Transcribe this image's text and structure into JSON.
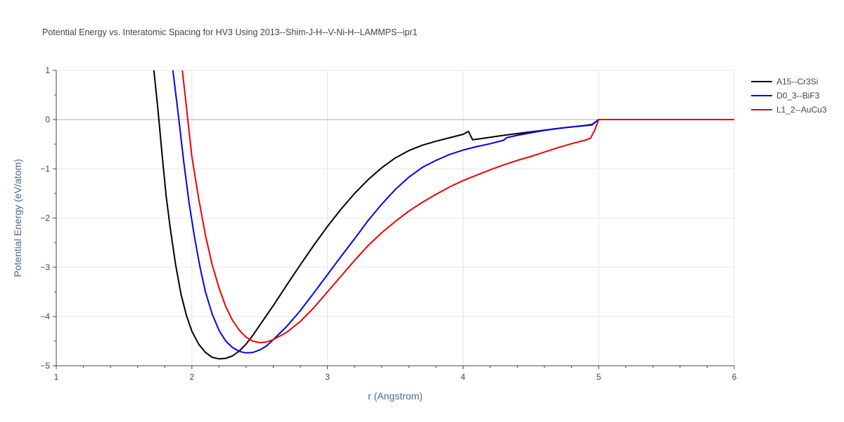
{
  "chart_data": {
    "type": "line",
    "title": "Potential Energy vs. Interatomic Spacing for HV3 Using 2013--Shim-J-H--V-Ni-H--LAMMPS--ipr1",
    "xlabel": "r (Angstrom)",
    "ylabel": "Potential Energy (eV/atom)",
    "xlim": [
      1,
      6
    ],
    "ylim": [
      -5,
      1
    ],
    "xticks": [
      1,
      2,
      3,
      4,
      5,
      6
    ],
    "xtick_labels": [
      "1",
      "2",
      "3",
      "4",
      "5",
      "6"
    ],
    "yticks": [
      1,
      0,
      -1,
      -2,
      -3,
      -4,
      -5
    ],
    "ytick_labels": [
      "1",
      "0",
      "−1",
      "−2",
      "−3",
      "−4",
      "−5"
    ],
    "grid": true,
    "legend_position": "top-right",
    "series": [
      {
        "name": "A15--Cr3Si",
        "color": "#000000",
        "points": [
          [
            1.72,
            1.0
          ],
          [
            1.75,
            0.2
          ],
          [
            1.78,
            -0.7
          ],
          [
            1.81,
            -1.55
          ],
          [
            1.84,
            -2.2
          ],
          [
            1.88,
            -2.95
          ],
          [
            1.92,
            -3.55
          ],
          [
            1.96,
            -3.98
          ],
          [
            2.0,
            -4.3
          ],
          [
            2.05,
            -4.56
          ],
          [
            2.1,
            -4.73
          ],
          [
            2.15,
            -4.83
          ],
          [
            2.2,
            -4.86
          ],
          [
            2.25,
            -4.85
          ],
          [
            2.3,
            -4.8
          ],
          [
            2.35,
            -4.7
          ],
          [
            2.4,
            -4.56
          ],
          [
            2.45,
            -4.38
          ],
          [
            2.5,
            -4.18
          ],
          [
            2.6,
            -3.78
          ],
          [
            2.7,
            -3.36
          ],
          [
            2.8,
            -2.95
          ],
          [
            2.9,
            -2.55
          ],
          [
            3.0,
            -2.17
          ],
          [
            3.1,
            -1.82
          ],
          [
            3.2,
            -1.5
          ],
          [
            3.3,
            -1.22
          ],
          [
            3.4,
            -0.98
          ],
          [
            3.5,
            -0.78
          ],
          [
            3.6,
            -0.63
          ],
          [
            3.7,
            -0.52
          ],
          [
            3.8,
            -0.44
          ],
          [
            3.9,
            -0.37
          ],
          [
            4.0,
            -0.3
          ],
          [
            4.04,
            -0.24
          ],
          [
            4.07,
            -0.41
          ],
          [
            4.1,
            -0.4
          ],
          [
            4.3,
            -0.32
          ],
          [
            4.5,
            -0.25
          ],
          [
            4.7,
            -0.18
          ],
          [
            4.9,
            -0.12
          ],
          [
            4.95,
            -0.1
          ],
          [
            5.0,
            0.0
          ],
          [
            6.0,
            0.0
          ]
        ]
      },
      {
        "name": "D0_3--BiF3",
        "color": "#0000ee",
        "points": [
          [
            1.86,
            1.0
          ],
          [
            1.9,
            0.1
          ],
          [
            1.94,
            -0.85
          ],
          [
            1.98,
            -1.7
          ],
          [
            2.02,
            -2.4
          ],
          [
            2.06,
            -3.0
          ],
          [
            2.1,
            -3.5
          ],
          [
            2.15,
            -3.95
          ],
          [
            2.2,
            -4.28
          ],
          [
            2.25,
            -4.5
          ],
          [
            2.3,
            -4.63
          ],
          [
            2.35,
            -4.71
          ],
          [
            2.4,
            -4.74
          ],
          [
            2.45,
            -4.73
          ],
          [
            2.5,
            -4.68
          ],
          [
            2.55,
            -4.6
          ],
          [
            2.6,
            -4.47
          ],
          [
            2.7,
            -4.2
          ],
          [
            2.8,
            -3.88
          ],
          [
            2.9,
            -3.52
          ],
          [
            3.0,
            -3.15
          ],
          [
            3.1,
            -2.78
          ],
          [
            3.2,
            -2.42
          ],
          [
            3.3,
            -2.05
          ],
          [
            3.4,
            -1.72
          ],
          [
            3.5,
            -1.42
          ],
          [
            3.6,
            -1.17
          ],
          [
            3.7,
            -0.97
          ],
          [
            3.8,
            -0.83
          ],
          [
            3.9,
            -0.71
          ],
          [
            4.0,
            -0.62
          ],
          [
            4.1,
            -0.55
          ],
          [
            4.2,
            -0.49
          ],
          [
            4.3,
            -0.42
          ],
          [
            4.32,
            -0.37
          ],
          [
            4.4,
            -0.32
          ],
          [
            4.5,
            -0.27
          ],
          [
            4.6,
            -0.22
          ],
          [
            4.7,
            -0.18
          ],
          [
            4.8,
            -0.15
          ],
          [
            4.95,
            -0.11
          ],
          [
            5.0,
            0.0
          ],
          [
            6.0,
            0.0
          ]
        ]
      },
      {
        "name": "L1_2--AuCu3",
        "color": "#ee0000",
        "points": [
          [
            1.93,
            1.0
          ],
          [
            1.97,
            0.0
          ],
          [
            2.0,
            -0.75
          ],
          [
            2.05,
            -1.6
          ],
          [
            2.1,
            -2.35
          ],
          [
            2.15,
            -2.95
          ],
          [
            2.2,
            -3.42
          ],
          [
            2.25,
            -3.8
          ],
          [
            2.3,
            -4.08
          ],
          [
            2.35,
            -4.28
          ],
          [
            2.4,
            -4.42
          ],
          [
            2.45,
            -4.5
          ],
          [
            2.5,
            -4.53
          ],
          [
            2.55,
            -4.52
          ],
          [
            2.6,
            -4.47
          ],
          [
            2.7,
            -4.32
          ],
          [
            2.8,
            -4.1
          ],
          [
            2.9,
            -3.82
          ],
          [
            3.0,
            -3.5
          ],
          [
            3.1,
            -3.18
          ],
          [
            3.2,
            -2.86
          ],
          [
            3.3,
            -2.56
          ],
          [
            3.4,
            -2.3
          ],
          [
            3.5,
            -2.07
          ],
          [
            3.6,
            -1.86
          ],
          [
            3.7,
            -1.68
          ],
          [
            3.8,
            -1.52
          ],
          [
            3.9,
            -1.37
          ],
          [
            4.0,
            -1.24
          ],
          [
            4.1,
            -1.13
          ],
          [
            4.2,
            -1.02
          ],
          [
            4.3,
            -0.92
          ],
          [
            4.4,
            -0.83
          ],
          [
            4.5,
            -0.75
          ],
          [
            4.6,
            -0.66
          ],
          [
            4.7,
            -0.57
          ],
          [
            4.8,
            -0.49
          ],
          [
            4.9,
            -0.42
          ],
          [
            4.94,
            -0.38
          ],
          [
            4.97,
            -0.22
          ],
          [
            5.0,
            0.0
          ],
          [
            6.0,
            0.0
          ]
        ]
      }
    ]
  }
}
